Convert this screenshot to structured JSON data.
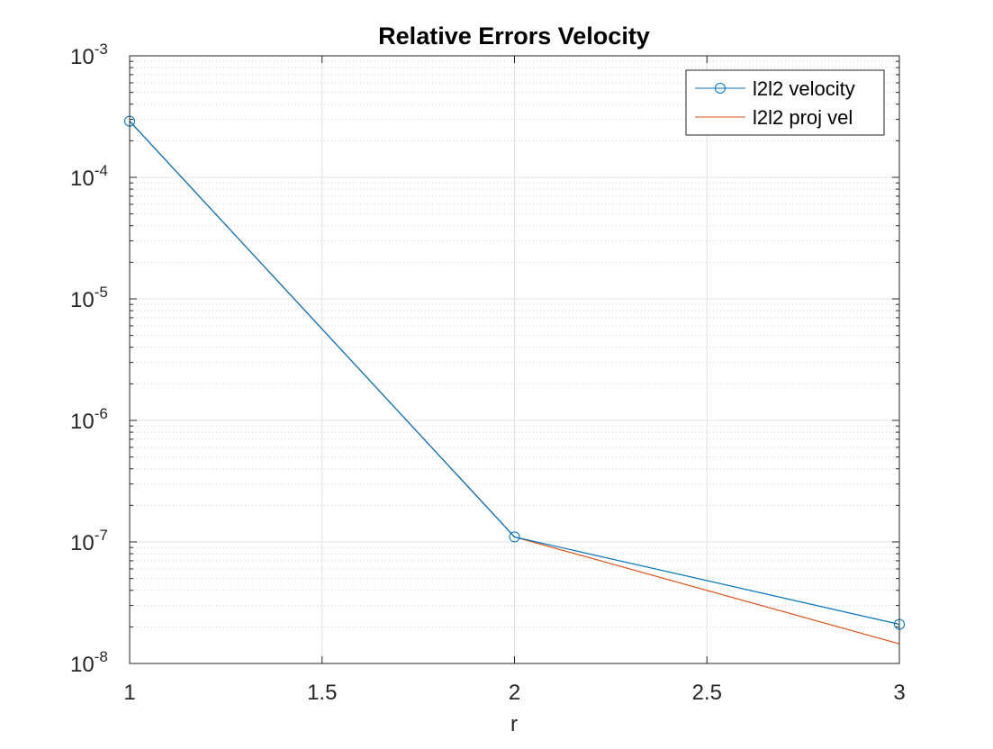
{
  "chart_data": {
    "type": "line",
    "title": "Relative Errors Velocity",
    "xlabel": "r",
    "ylabel": "",
    "xlim": [
      1,
      3
    ],
    "ylim": [
      1e-08,
      0.001
    ],
    "yscale": "log",
    "grid": true,
    "minor_grid": true,
    "legend_location": "top-right",
    "x_ticks": [
      {
        "value": 1,
        "label": "1"
      },
      {
        "value": 1.5,
        "label": "1.5"
      },
      {
        "value": 2,
        "label": "2"
      },
      {
        "value": 2.5,
        "label": "2.5"
      },
      {
        "value": 3,
        "label": "3"
      }
    ],
    "y_ticks": [
      {
        "value": 1e-08,
        "base": "10",
        "exp": "-8"
      },
      {
        "value": 1e-07,
        "base": "10",
        "exp": "-7"
      },
      {
        "value": 1e-06,
        "base": "10",
        "exp": "-6"
      },
      {
        "value": 1e-05,
        "base": "10",
        "exp": "-5"
      },
      {
        "value": 0.0001,
        "base": "10",
        "exp": "-4"
      },
      {
        "value": 0.001,
        "base": "10",
        "exp": "-3"
      }
    ],
    "series": [
      {
        "name": "l2l2 velocity",
        "color": "#0072bd",
        "marker": "circle",
        "x": [
          1,
          2,
          3
        ],
        "y": [
          0.00029,
          1.1e-07,
          2.1e-08
        ]
      },
      {
        "name": "l2l2 proj vel",
        "color": "#d95319",
        "marker": "none",
        "x": [
          1,
          2,
          3
        ],
        "y": [
          0.00029,
          1.1e-07,
          1.45e-08
        ]
      }
    ]
  }
}
